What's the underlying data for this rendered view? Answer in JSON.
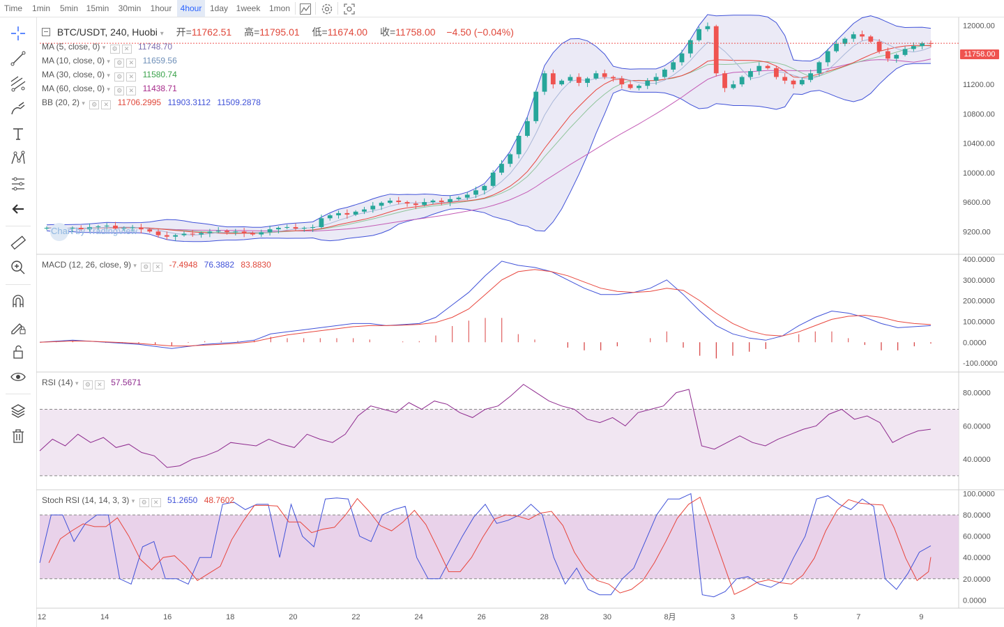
{
  "toolbar": {
    "timeframes": [
      "Time",
      "1min",
      "5min",
      "15min",
      "30min",
      "1hour",
      "4hour",
      "1day",
      "1week",
      "1mon"
    ],
    "active": "4hour",
    "icons": [
      "chart-style-icon",
      "settings-icon",
      "screenshot-icon"
    ]
  },
  "left_tools": [
    "crosshair-icon",
    "trend-line-icon",
    "fib-icon",
    "brush-icon",
    "text-icon",
    "pattern-icon",
    "prediction-icon",
    "back-arrow-icon",
    "ruler-icon",
    "zoom-in-icon",
    "magnet-icon",
    "lock-drawing-icon",
    "unlock-icon",
    "eye-icon",
    "layers-icon",
    "trash-icon"
  ],
  "header": {
    "symbol": "BTC/USDT, 240, Huobi",
    "open_label": "开=",
    "open": "11762.51",
    "high_label": "高=",
    "high": "11795.01",
    "low_label": "低=",
    "low": "11674.00",
    "close_label": "收=",
    "close": "11758.00",
    "change": "−4.50 (−0.04%)"
  },
  "legends": {
    "ma5": {
      "name": "MA (5, close, 0)",
      "value": "11748.70",
      "color": "#7b6fb0"
    },
    "ma10": {
      "name": "MA (10, close, 0)",
      "value": "11659.56",
      "color": "#6e8fb8"
    },
    "ma30": {
      "name": "MA (30, close, 0)",
      "value": "11580.74",
      "color": "#3aa24a"
    },
    "ma60": {
      "name": "MA (60, close, 0)",
      "value": "11438.71",
      "color": "#a62a8a"
    },
    "bb": {
      "name": "BB (20, 2)",
      "v1": "11706.2995",
      "v2": "11903.3112",
      "v3": "11509.2878"
    },
    "macd": {
      "name": "MACD (12, 26, close, 9)",
      "v1": "-7.4948",
      "v2": "76.3882",
      "v3": "83.8830"
    },
    "rsi": {
      "name": "RSI (14)",
      "value": "57.5671"
    },
    "stoch": {
      "name": "Stoch RSI (14, 14, 3, 3)",
      "v1": "51.2650",
      "v2": "48.7602"
    }
  },
  "price_badge": "11758.00",
  "watermark": "Chart by TradingView",
  "colors": {
    "up": "#26a69a",
    "down": "#ef5350",
    "blue": "#3f51d8",
    "red": "#e8453c",
    "bbfill": "#e8e6f4",
    "rsifill": "#f1e6f2",
    "stochfill": "#e9d2ea"
  },
  "chart_data": {
    "type": "line",
    "x_tick_labels": [
      "12",
      "14",
      "16",
      "18",
      "20",
      "22",
      "24",
      "26",
      "28",
      "30",
      "8月",
      "3",
      "5",
      "7",
      "9"
    ],
    "price_axis": [
      "12000.00",
      "11600.00",
      "11200.00",
      "10800.00",
      "10400.00",
      "10000.00",
      "9600.00",
      "9200.00"
    ],
    "price_ylim": [
      8900,
      12100
    ],
    "macd_axis": [
      "400.0000",
      "300.0000",
      "200.0000",
      "100.0000",
      "0.0000",
      "-100.0000"
    ],
    "rsi_axis": [
      "80.0000",
      "60.0000",
      "40.0000"
    ],
    "stoch_axis": [
      "100.0000",
      "80.0000",
      "60.0000",
      "40.0000",
      "20.0000",
      "0.0000"
    ],
    "last_price": 11758.0,
    "price_close_series": [
      9250,
      9240,
      9245,
      9250,
      9230,
      9260,
      9270,
      9280,
      9240,
      9250,
      9255,
      9230,
      9200,
      9150,
      9130,
      9150,
      9170,
      9160,
      9180,
      9200,
      9210,
      9190,
      9200,
      9180,
      9160,
      9190,
      9230,
      9250,
      9260,
      9240,
      9250,
      9260,
      9380,
      9420,
      9450,
      9430,
      9470,
      9500,
      9550,
      9590,
      9620,
      9600,
      9580,
      9560,
      9600,
      9620,
      9600,
      9640,
      9660,
      9700,
      9760,
      9820,
      10000,
      10120,
      10250,
      10500,
      10700,
      11100,
      11350,
      11200,
      11250,
      11300,
      11220,
      11280,
      11350,
      11300,
      11280,
      11200,
      11150,
      11180,
      11250,
      11300,
      11400,
      11500,
      11620,
      11800,
      11950,
      11990,
      11350,
      11150,
      11200,
      11300,
      11380,
      11450,
      11420,
      11300,
      11250,
      11200,
      11260,
      11350,
      11500,
      11650,
      11750,
      11820,
      11880,
      11850,
      11780,
      11650,
      11550,
      11600,
      11680,
      11720,
      11760,
      11758
    ],
    "macd_line": [
      0,
      5,
      10,
      5,
      0,
      -5,
      -10,
      -20,
      -30,
      -20,
      -10,
      -5,
      0,
      10,
      40,
      50,
      60,
      70,
      80,
      90,
      90,
      80,
      85,
      90,
      120,
      180,
      240,
      320,
      390,
      370,
      360,
      340,
      300,
      260,
      230,
      230,
      240,
      260,
      300,
      230,
      150,
      80,
      40,
      20,
      10,
      30,
      80,
      120,
      150,
      140,
      120,
      90,
      70,
      75,
      80
    ],
    "signal_line": [
      0,
      3,
      6,
      5,
      2,
      -2,
      -6,
      -12,
      -18,
      -18,
      -14,
      -10,
      -5,
      3,
      20,
      35,
      45,
      55,
      65,
      75,
      80,
      80,
      82,
      86,
      95,
      120,
      160,
      230,
      300,
      340,
      350,
      340,
      320,
      290,
      260,
      245,
      240,
      245,
      260,
      250,
      200,
      140,
      90,
      55,
      35,
      30,
      50,
      80,
      110,
      125,
      130,
      120,
      100,
      90,
      85
    ],
    "rsi_series": [
      45,
      52,
      48,
      55,
      50,
      53,
      47,
      49,
      44,
      42,
      35,
      36,
      40,
      42,
      45,
      50,
      49,
      48,
      52,
      49,
      47,
      55,
      52,
      50,
      55,
      66,
      72,
      70,
      68,
      74,
      70,
      75,
      73,
      68,
      65,
      70,
      72,
      78,
      85,
      80,
      75,
      72,
      70,
      64,
      62,
      65,
      60,
      68,
      70,
      72,
      80,
      82,
      48,
      46,
      50,
      54,
      50,
      48,
      52,
      55,
      58,
      60,
      67,
      70,
      64,
      66,
      62,
      50,
      54,
      57,
      58
    ],
    "stoch_k": [
      35,
      80,
      80,
      55,
      72,
      80,
      80,
      20,
      15,
      50,
      55,
      20,
      20,
      15,
      40,
      40,
      90,
      92,
      85,
      90,
      90,
      40,
      90,
      60,
      50,
      95,
      96,
      95,
      60,
      55,
      80,
      85,
      88,
      40,
      20,
      20,
      40,
      60,
      78,
      90,
      72,
      75,
      80,
      90,
      80,
      40,
      15,
      30,
      10,
      5,
      5,
      20,
      30,
      55,
      80,
      95,
      95,
      100,
      5,
      3,
      8,
      20,
      22,
      15,
      12,
      18,
      40,
      60,
      95,
      98,
      90,
      85,
      95,
      88,
      20,
      10,
      25,
      45,
      51
    ]
  }
}
